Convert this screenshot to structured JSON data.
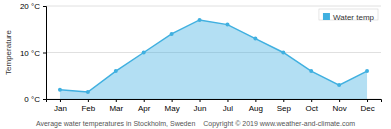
{
  "chart_data": {
    "type": "area",
    "title": "Average water temperatures in Stockholm, Sweden",
    "annotations": [
      "Copyright © 2019 www.weather-and-climate.com"
    ],
    "y_label": "Temperature",
    "categories": [
      "Jan",
      "Feb",
      "Mar",
      "Apr",
      "May",
      "Jun",
      "Jul",
      "Aug",
      "Sep",
      "Oct",
      "Nov",
      "Dec"
    ],
    "series": [
      {
        "name": "Water temp",
        "color": "#40b0e0",
        "marker": "circle",
        "values": [
          2,
          1.5,
          6,
          10,
          14,
          17,
          16,
          13,
          10,
          6,
          3,
          6
        ]
      }
    ],
    "ylim": [
      0,
      20
    ],
    "yticks": [
      {
        "value": 0,
        "label": "0 °C"
      },
      {
        "value": 10,
        "label": "10 °C"
      },
      {
        "value": 20,
        "label": "20 °C"
      }
    ],
    "grid": true,
    "legend": "top-right"
  }
}
